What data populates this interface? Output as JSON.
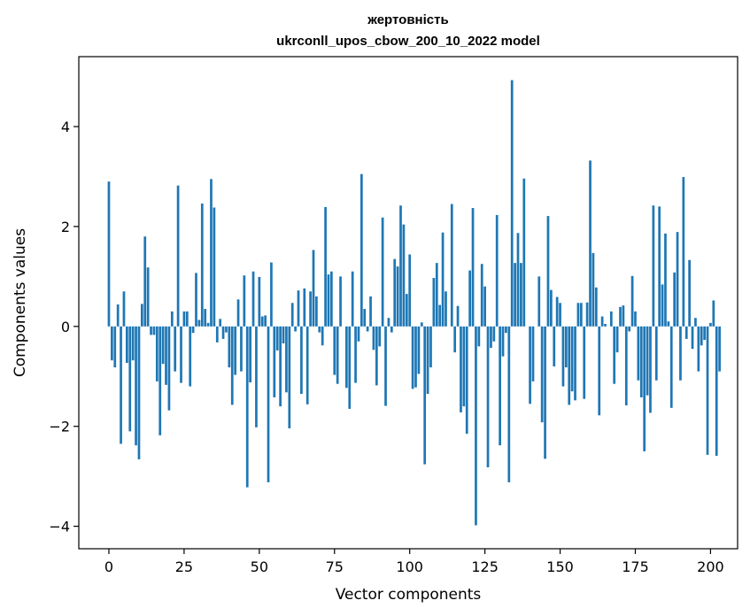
{
  "chart_data": {
    "type": "bar",
    "title": "жертовність",
    "subtitle": "ukrconll_upos_cbow_200_10_2022 model",
    "xlabel": "Vector components",
    "ylabel": "Components values",
    "xlim": [
      -10,
      209
    ],
    "ylim": [
      -4.45,
      5.4
    ],
    "xticks": [
      0,
      25,
      50,
      75,
      100,
      125,
      150,
      175,
      200
    ],
    "yticks": [
      -4,
      -2,
      0,
      2,
      4
    ],
    "ytick_labels": [
      "−4",
      "−2",
      "0",
      "2",
      "4"
    ],
    "grid": false,
    "bar_color": "#1f77b4",
    "values": [
      2.9,
      -0.68,
      -0.82,
      0.44,
      -2.35,
      0.7,
      -0.73,
      -2.1,
      -0.68,
      -2.38,
      -2.66,
      0.45,
      1.8,
      1.18,
      -0.17,
      -0.17,
      -1.1,
      -2.18,
      -0.75,
      -1.17,
      -1.68,
      0.3,
      -0.9,
      2.82,
      -1.13,
      0.3,
      0.3,
      -1.2,
      -0.13,
      1.07,
      0.13,
      2.46,
      0.35,
      0.07,
      2.95,
      2.38,
      -0.32,
      0.15,
      -0.25,
      -0.12,
      -0.82,
      -1.57,
      -0.97,
      0.54,
      -0.9,
      1.02,
      -3.22,
      -1.12,
      1.1,
      -2.02,
      0.99,
      0.2,
      0.22,
      -3.12,
      1.28,
      -1.42,
      -0.48,
      -1.6,
      -0.34,
      -1.32,
      -2.04,
      0.47,
      -0.1,
      0.72,
      -1.35,
      0.76,
      -1.56,
      0.7,
      1.53,
      0.6,
      -0.12,
      -0.38,
      2.39,
      1.04,
      1.1,
      -0.97,
      -1.15,
      1.0,
      0.0,
      -1.23,
      -1.65,
      1.1,
      -1.13,
      -0.3,
      3.05,
      0.35,
      -0.1,
      0.6,
      -0.47,
      -1.18,
      -0.4,
      2.18,
      -1.59,
      0.17,
      -0.12,
      1.35,
      1.2,
      2.42,
      2.04,
      0.65,
      1.44,
      -1.25,
      -1.22,
      -0.95,
      0.08,
      -2.76,
      -1.35,
      -0.82,
      0.97,
      1.27,
      0.43,
      1.88,
      0.7,
      0.0,
      2.45,
      -0.52,
      0.41,
      -1.72,
      -1.6,
      -2.15,
      1.12,
      2.37,
      -3.98,
      -0.4,
      1.25,
      0.8,
      -2.82,
      -0.43,
      -0.3,
      2.23,
      -2.38,
      -0.6,
      -0.13,
      -3.12,
      4.93,
      1.27,
      1.87,
      1.27,
      2.96,
      0.0,
      -1.55,
      -1.1,
      0.0,
      1.0,
      -1.92,
      -2.65,
      2.21,
      0.73,
      -0.8,
      0.59,
      0.47,
      -1.2,
      -0.82,
      -1.57,
      -1.3,
      -1.48,
      0.47,
      0.47,
      -1.45,
      0.48,
      3.32,
      1.47,
      0.78,
      -1.78,
      0.2,
      0.05,
      0.0,
      0.3,
      -1.15,
      -0.52,
      0.39,
      0.42,
      -1.58,
      -0.1,
      1.01,
      0.3,
      -1.08,
      -1.42,
      -2.5,
      -1.38,
      -1.73,
      2.42,
      -1.08,
      2.4,
      0.84,
      1.86,
      0.1,
      -1.63,
      1.08,
      1.89,
      -1.08,
      2.99,
      -0.25,
      1.33,
      -0.45,
      0.17,
      -0.9,
      -0.38,
      -0.27,
      -2.57,
      0.07,
      0.52,
      -2.59,
      -0.9
    ]
  }
}
